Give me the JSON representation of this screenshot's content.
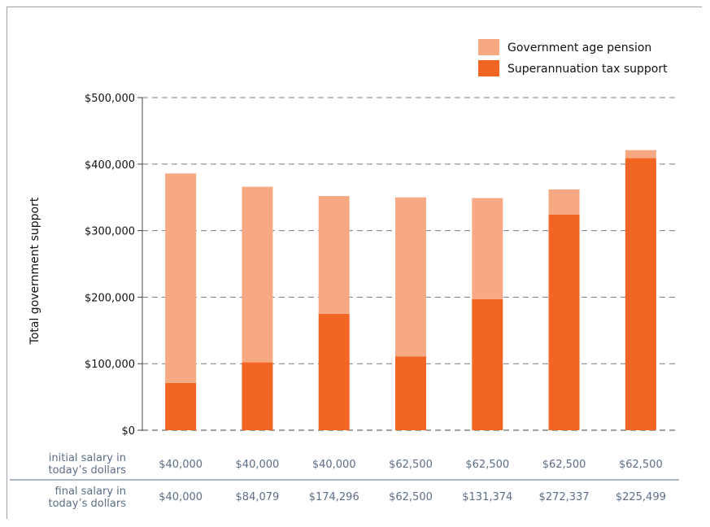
{
  "chart_data": {
    "type": "bar",
    "stacked": true,
    "ylabel": "Total government support",
    "ylim": [
      0,
      500000
    ],
    "yticks": [
      {
        "value": 0,
        "label": "$0"
      },
      {
        "value": 100000,
        "label": "$100,000"
      },
      {
        "value": 200000,
        "label": "$200,000"
      },
      {
        "value": 300000,
        "label": "$300,000"
      },
      {
        "value": 400000,
        "label": "$400,000"
      },
      {
        "value": 500000,
        "label": "$500,000"
      }
    ],
    "grid": true,
    "legend_position": "top-right",
    "series": [
      {
        "name": "Superannuation tax support",
        "color": "#f26522",
        "values": [
          71000,
          102000,
          175000,
          111000,
          197000,
          324000,
          409000
        ]
      },
      {
        "name": "Government age pension",
        "color": "#f7a983",
        "values": [
          315000,
          264000,
          177000,
          239000,
          152000,
          38000,
          12000
        ]
      }
    ],
    "legend": [
      {
        "name": "Government age pension",
        "color": "#f7a983"
      },
      {
        "name": "Superannuation tax support",
        "color": "#f26522"
      }
    ],
    "rows": [
      {
        "label_line1": "initial salary in",
        "label_line2": "today’s dollars",
        "values": [
          "$40,000",
          "$40,000",
          "$40,000",
          "$62,500",
          "$62,500",
          "$62,500",
          "$62,500"
        ]
      },
      {
        "label_line1": "final salary in",
        "label_line2": "today’s dollars",
        "values": [
          "$40,000",
          "$84,079",
          "$174,296",
          "$62,500",
          "$131,374",
          "$272,337",
          "$225,499"
        ]
      }
    ]
  }
}
